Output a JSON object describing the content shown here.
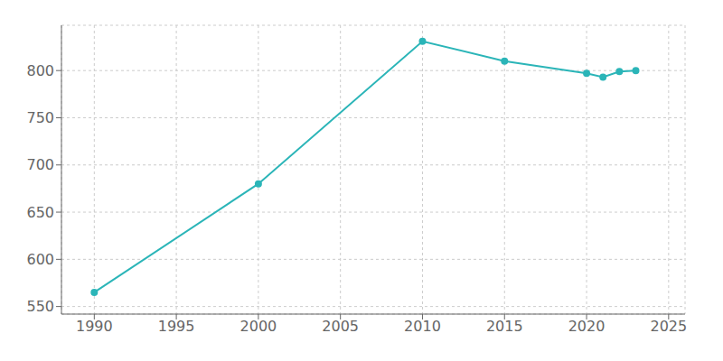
{
  "chart_data": {
    "type": "line",
    "x": [
      1990,
      2000,
      2010,
      2015,
      2020,
      2021,
      2022,
      2023
    ],
    "values": [
      565,
      680,
      831,
      810,
      797,
      793,
      799,
      800
    ],
    "color": "#2BB5B8",
    "marker": "circle",
    "xlim": [
      1988,
      2026
    ],
    "ylim": [
      542,
      848
    ],
    "xticks": [
      1990,
      1995,
      2000,
      2005,
      2010,
      2015,
      2020,
      2025
    ],
    "yticks": [
      550,
      600,
      650,
      700,
      750,
      800
    ],
    "grid": true
  }
}
